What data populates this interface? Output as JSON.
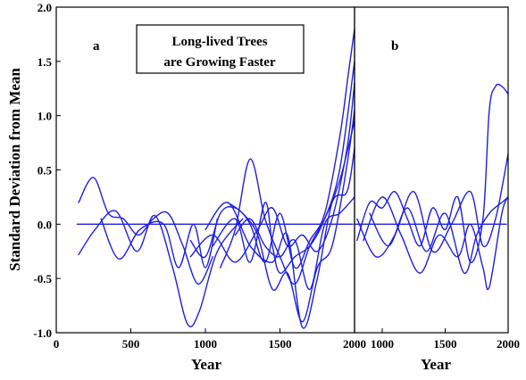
{
  "chart_data": [
    {
      "type": "line",
      "panel_label": "a",
      "annotation": [
        "Long-lived Trees",
        "are Growing Faster"
      ],
      "xlabel": "Year",
      "ylabel": "Standard Deviation from Mean",
      "xlim": [
        0,
        2000
      ],
      "ylim": [
        -1.0,
        2.0
      ],
      "xticks": [
        0,
        500,
        1000,
        1500,
        2000
      ],
      "yticks": [
        -1.0,
        -0.5,
        0.0,
        0.5,
        1.0,
        1.5,
        2.0
      ],
      "ytick_labels": [
        "-1.0",
        "-0.5",
        "0.0",
        "0.5",
        "1.0",
        "1.5",
        "2.0"
      ],
      "grid": false,
      "color": "#1f1fe0",
      "series": [
        {
          "x": [
            150,
            250,
            350,
            450,
            550,
            650,
            750,
            850,
            950,
            1050
          ],
          "values": [
            0.2,
            0.43,
            0.1,
            0.05,
            -0.1,
            0.05,
            0.1,
            -0.2,
            -0.55,
            -0.3
          ]
        },
        {
          "x": [
            150,
            260,
            400,
            540,
            660,
            780,
            880,
            960,
            1080,
            1250
          ],
          "values": [
            -0.28,
            -0.05,
            0.12,
            -0.25,
            0.08,
            -0.4,
            -0.92,
            -0.8,
            -0.25,
            0.05
          ]
        },
        {
          "x": [
            300,
            420,
            560,
            720,
            820,
            920,
            1000,
            1080
          ],
          "values": [
            0.05,
            -0.32,
            -0.05,
            0.0,
            -0.4,
            0.0,
            -0.4,
            0.05
          ]
        },
        {
          "x": [
            900,
            1000,
            1100,
            1200,
            1300,
            1400,
            1500,
            1600,
            1700,
            1800,
            1900,
            1960,
            2000
          ],
          "values": [
            -0.15,
            -0.3,
            0.1,
            0.15,
            0.0,
            -0.35,
            0.1,
            -0.4,
            -0.15,
            0.1,
            0.8,
            1.4,
            1.8
          ]
        },
        {
          "x": [
            1050,
            1200,
            1300,
            1400,
            1450,
            1500,
            1600,
            1700,
            1800,
            1900,
            2000
          ],
          "values": [
            -0.2,
            0.05,
            -0.35,
            0.2,
            -0.2,
            -0.45,
            -0.3,
            -0.2,
            0.05,
            0.5,
            1.5
          ]
        },
        {
          "x": [
            900,
            1050,
            1200,
            1350,
            1450,
            1550,
            1650,
            1750,
            1850,
            1950,
            2000
          ],
          "values": [
            -0.3,
            -0.1,
            -0.35,
            -0.05,
            0.15,
            -0.2,
            -0.1,
            -0.25,
            0.05,
            0.7,
            1.3
          ]
        },
        {
          "x": [
            1150,
            1250,
            1350,
            1450,
            1550,
            1650,
            1750,
            1850,
            1950,
            2000
          ],
          "values": [
            0.2,
            0.1,
            -0.1,
            -0.6,
            -0.45,
            -0.9,
            -0.4,
            -0.2,
            0.55,
            1.05
          ]
        },
        {
          "x": [
            1100,
            1200,
            1300,
            1400,
            1500,
            1600,
            1700,
            1800,
            1900,
            2000
          ],
          "values": [
            -0.4,
            -0.05,
            0.6,
            0.05,
            -0.3,
            -0.55,
            -0.2,
            0.05,
            0.4,
            0.95
          ]
        },
        {
          "x": [
            1000,
            1150,
            1300,
            1450,
            1550,
            1650,
            1750,
            1850,
            1950,
            2000
          ],
          "values": [
            -0.05,
            0.2,
            -0.2,
            -0.35,
            -0.1,
            -0.95,
            -0.5,
            0.2,
            0.3,
            0.7
          ]
        },
        {
          "x": [
            1200,
            1300,
            1400,
            1500,
            1600,
            1700,
            1800,
            1900,
            2000
          ],
          "values": [
            -0.1,
            0.05,
            -0.2,
            -0.3,
            -0.15,
            -0.6,
            0.0,
            0.1,
            0.25
          ]
        }
      ]
    },
    {
      "type": "line",
      "panel_label": "b",
      "xlabel": "Year",
      "xlim": [
        780,
        2000
      ],
      "ylim": [
        -1.0,
        2.0
      ],
      "xticks": [
        1000,
        1500,
        2000
      ],
      "grid": false,
      "color": "#1f1fe0",
      "series": [
        {
          "x": [
            800,
            900,
            1000,
            1100,
            1200,
            1300,
            1400,
            1500,
            1600,
            1700,
            1800,
            1850,
            1900,
            1950,
            2000
          ],
          "values": [
            -0.15,
            0.2,
            0.15,
            0.3,
            0.05,
            -0.2,
            0.15,
            -0.05,
            0.25,
            -0.35,
            0.05,
            1.05,
            1.27,
            1.27,
            1.2
          ]
        },
        {
          "x": [
            800,
            950,
            1100,
            1250,
            1400,
            1550,
            1700,
            1800,
            1900,
            2000
          ],
          "values": [
            0.05,
            -0.3,
            -0.1,
            0.3,
            -0.25,
            0.0,
            0.3,
            -0.2,
            0.05,
            0.65
          ]
        },
        {
          "x": [
            850,
            1000,
            1150,
            1300,
            1450,
            1600,
            1700,
            1800,
            1850,
            1950,
            2000
          ],
          "values": [
            -0.15,
            0.25,
            -0.1,
            -0.45,
            -0.1,
            -0.3,
            0.0,
            -0.4,
            -0.58,
            0.1,
            0.25
          ]
        },
        {
          "x": [
            900,
            1050,
            1200,
            1350,
            1500,
            1650,
            1750,
            1850,
            1950,
            2000
          ],
          "values": [
            0.1,
            -0.2,
            0.15,
            -0.25,
            0.1,
            -0.45,
            -0.1,
            0.1,
            0.2,
            0.25
          ]
        }
      ]
    }
  ]
}
